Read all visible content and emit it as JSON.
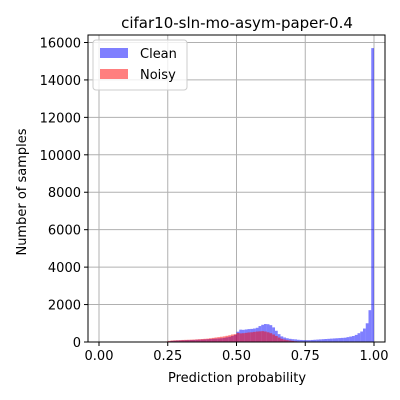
{
  "chart_data": {
    "type": "histogram",
    "title": "cifar10-sln-mo-asym-paper-0.4",
    "xlabel": "Prediction probability",
    "ylabel": "Number of samples",
    "xlim": [
      -0.04,
      1.04
    ],
    "ylim": [
      0,
      16400
    ],
    "xticks": [
      0.0,
      0.25,
      0.5,
      0.75,
      1.0
    ],
    "xtick_labels": [
      "0.00",
      "0.25",
      "0.50",
      "0.75",
      "1.00"
    ],
    "yticks": [
      0,
      2000,
      4000,
      6000,
      8000,
      10000,
      12000,
      14000,
      16000
    ],
    "ytick_labels": [
      "0",
      "2000",
      "4000",
      "6000",
      "8000",
      "10000",
      "12000",
      "14000",
      "16000"
    ],
    "grid": true,
    "legend_position": "top-left",
    "bin_width": 0.01,
    "bin_start": 0.0,
    "series": [
      {
        "name": "Clean",
        "color": "#0000ff",
        "alpha": 0.5,
        "values": [
          0,
          0,
          0,
          0,
          0,
          0,
          0,
          0,
          0,
          0,
          0,
          0,
          0,
          0,
          0,
          0,
          0,
          0,
          0,
          0,
          0,
          0,
          0,
          10,
          15,
          40,
          60,
          70,
          80,
          85,
          90,
          95,
          100,
          105,
          110,
          120,
          125,
          130,
          140,
          150,
          160,
          170,
          180,
          190,
          200,
          220,
          250,
          280,
          320,
          380,
          550,
          660,
          650,
          670,
          690,
          700,
          720,
          760,
          850,
          920,
          960,
          950,
          900,
          780,
          600,
          420,
          300,
          240,
          200,
          170,
          150,
          140,
          120,
          110,
          100,
          100,
          100,
          110,
          120,
          130,
          140,
          150,
          160,
          170,
          180,
          190,
          200,
          210,
          220,
          230,
          260,
          290,
          320,
          380,
          470,
          560,
          720,
          1000,
          1700,
          15700,
          0
        ]
      },
      {
        "name": "Noisy",
        "color": "#ff0000",
        "alpha": 0.5,
        "values": [
          0,
          0,
          0,
          0,
          0,
          0,
          0,
          0,
          0,
          0,
          0,
          0,
          0,
          0,
          0,
          0,
          0,
          0,
          0,
          0,
          0,
          0,
          0,
          20,
          30,
          60,
          80,
          90,
          95,
          100,
          110,
          115,
          120,
          125,
          130,
          140,
          150,
          160,
          170,
          180,
          200,
          220,
          240,
          260,
          280,
          300,
          330,
          360,
          400,
          420,
          480,
          460,
          470,
          490,
          510,
          520,
          540,
          560,
          570,
          580,
          560,
          520,
          470,
          400,
          320,
          240,
          170,
          130,
          100,
          80,
          60,
          40,
          30,
          20,
          10,
          0,
          0,
          0,
          0,
          0,
          0,
          0,
          0,
          0,
          0,
          0,
          0,
          0,
          0,
          0,
          0,
          0,
          0,
          0,
          0,
          0,
          0,
          0,
          0,
          0,
          0
        ]
      }
    ]
  }
}
